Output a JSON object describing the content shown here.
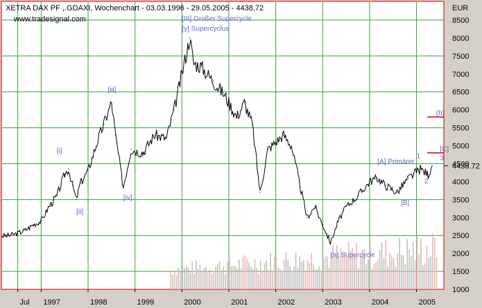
{
  "chart_data": {
    "type": "line",
    "title": "XETRA DAX PF ,.GDAXI, Wochenchart - 03.03.1996 - 29.05.2005 - 4438.72",
    "source": "www.tradesignal.com",
    "y_unit": "EUR",
    "last_value_label": "4438.72",
    "ylim": [
      1000,
      9000
    ],
    "y_ticks": [
      1000,
      1500,
      2000,
      2500,
      3000,
      3500,
      4000,
      4500,
      5000,
      5500,
      6000,
      6500,
      7000,
      7500,
      8000,
      8500
    ],
    "xlim": [
      "1996-03",
      "2005-08"
    ],
    "x_ticks": [
      {
        "label": "Jul",
        "x": "1996-07"
      },
      {
        "label": "1997",
        "x": "1997-01"
      },
      {
        "label": "1998",
        "x": "1998-01"
      },
      {
        "label": "1999",
        "x": "1999-01"
      },
      {
        "label": "2000",
        "x": "2000-01"
      },
      {
        "label": "2001",
        "x": "2001-01"
      },
      {
        "label": "2002",
        "x": "2002-01"
      },
      {
        "label": "2003",
        "x": "2003-01"
      },
      {
        "label": "2004",
        "x": "2004-01"
      },
      {
        "label": "2005",
        "x": "2005-01"
      }
    ],
    "grid": true,
    "series": [
      {
        "values": [
          [
            "1996-03",
            2480
          ],
          [
            "1996-05",
            2500
          ],
          [
            "1996-07",
            2560
          ],
          [
            "1996-09",
            2650
          ],
          [
            "1996-11",
            2800
          ],
          [
            "1997-01",
            2900
          ],
          [
            "1997-03",
            3300
          ],
          [
            "1997-05",
            3600
          ],
          [
            "1997-07",
            4200
          ],
          [
            "1997-08",
            4350
          ],
          [
            "1997-09",
            3900
          ],
          [
            "1997-10",
            3500
          ],
          [
            "1997-11",
            3950
          ],
          [
            "1998-01",
            4300
          ],
          [
            "1998-03",
            5000
          ],
          [
            "1998-05",
            5600
          ],
          [
            "1998-07",
            6200
          ],
          [
            "1998-08",
            5300
          ],
          [
            "1998-10",
            3850
          ],
          [
            "1998-12",
            4900
          ],
          [
            "1999-03",
            4800
          ],
          [
            "1999-06",
            5300
          ],
          [
            "1999-09",
            5200
          ],
          [
            "1999-11",
            6000
          ],
          [
            "2000-01",
            7000
          ],
          [
            "2000-03",
            8000
          ],
          [
            "2000-04",
            7300
          ],
          [
            "2000-06",
            7200
          ],
          [
            "2000-09",
            6800
          ],
          [
            "2000-12",
            6400
          ],
          [
            "2001-03",
            5800
          ],
          [
            "2001-05",
            6200
          ],
          [
            "2001-07",
            5600
          ],
          [
            "2001-09",
            3700
          ],
          [
            "2001-11",
            4900
          ],
          [
            "2002-01",
            5100
          ],
          [
            "2002-03",
            5300
          ],
          [
            "2002-05",
            5000
          ],
          [
            "2002-07",
            4000
          ],
          [
            "2002-09",
            3000
          ],
          [
            "2002-11",
            3300
          ],
          [
            "2003-01",
            2800
          ],
          [
            "2003-03",
            2300
          ],
          [
            "2003-05",
            2900
          ],
          [
            "2003-07",
            3300
          ],
          [
            "2003-10",
            3600
          ],
          [
            "2004-01",
            4000
          ],
          [
            "2004-03",
            4100
          ],
          [
            "2004-05",
            3900
          ],
          [
            "2004-08",
            3700
          ],
          [
            "2004-11",
            4100
          ],
          [
            "2005-02",
            4350
          ],
          [
            "2005-04",
            4200
          ],
          [
            "2005-05",
            4438.72
          ]
        ]
      }
    ],
    "annotations": [
      {
        "text": "[III] Großer Supercycle",
        "x": "2000-01",
        "y": 8480
      },
      {
        "text": "[y] Supercyclus",
        "x": "2000-01",
        "y": 8200
      },
      {
        "text": "[iii]",
        "x": "1998-06",
        "y": 6500
      },
      {
        "text": "[i]",
        "x": "1997-05",
        "y": 4800
      },
      {
        "text": "[ii]",
        "x": "1997-10",
        "y": 3100
      },
      {
        "text": "[iv]",
        "x": "1998-10",
        "y": 3500
      },
      {
        "text": "(a) Supercycle",
        "x": "2003-03",
        "y": 1900
      },
      {
        "text": "[A] Primärer",
        "x": "2004-03",
        "y": 4500
      },
      {
        "text": "[B]",
        "x": "2004-09",
        "y": 3350
      },
      {
        "text": "1",
        "x": "2005-01",
        "y": 4650
      },
      {
        "text": "2",
        "x": "2005-03",
        "y": 3950
      },
      {
        "text": "(b)",
        "x": "2005-06",
        "y": 5850
      },
      {
        "text": "[C]",
        "x": "2005-07",
        "y": 4850
      },
      {
        "text": "3",
        "x": "2005-07",
        "y": 4600
      }
    ],
    "markers": [
      {
        "y": 5800,
        "color": "#cc0000"
      },
      {
        "y": 4800,
        "color": "#cc0000"
      }
    ],
    "colors": {
      "price": "#000000",
      "volume": "#e8b8b8",
      "grid": "#3c9c3c",
      "annotation": "#6666cc",
      "frame": "#cc0000"
    }
  }
}
